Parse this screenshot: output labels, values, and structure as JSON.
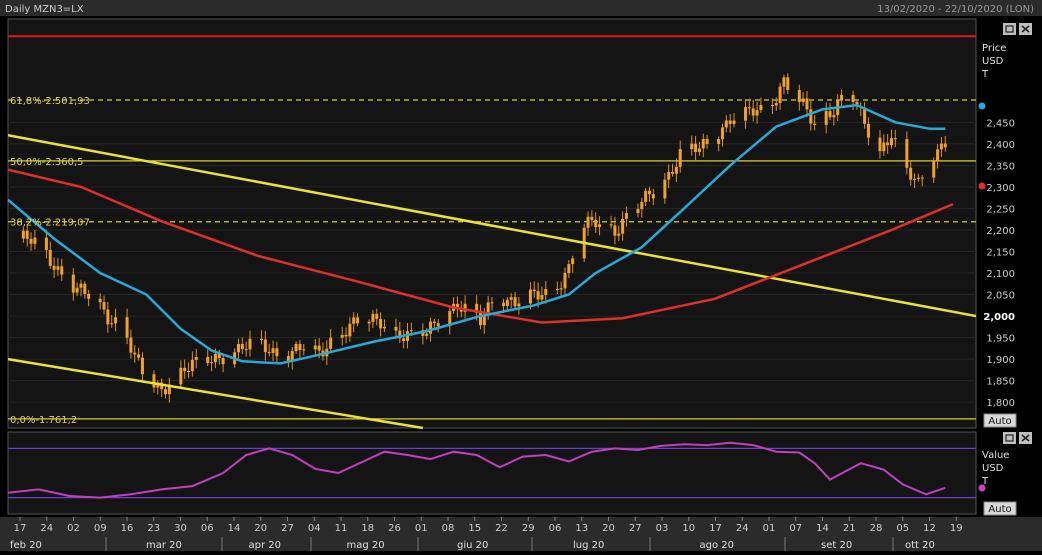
{
  "header": {
    "title": "Daily MZN3=LX",
    "range": "13/02/2020 - 22/10/2020 (LON)"
  },
  "price_panel": {
    "axis_title": [
      "Price",
      "USD",
      "T"
    ],
    "auto_label": "Auto",
    "fib_labels": [
      {
        "text": "61,8%-2.501,93",
        "value": 2501.93,
        "style": "dashed"
      },
      {
        "text": "50,0%-2.360,5",
        "value": 2360.5,
        "style": "solid"
      },
      {
        "text": "38,2%-2.219,07",
        "value": 2219.07,
        "style": "dashed"
      },
      {
        "text": "0,0%-1.761,2",
        "value": 1761.2,
        "style": "solid"
      }
    ],
    "red_level": 2650
  },
  "indicator_panel": {
    "axis_title": [
      "Value",
      "USD",
      "T"
    ],
    "auto_label": "Auto"
  },
  "x_axis": {
    "day_ticks": [
      "17",
      "24",
      "02",
      "09",
      "16",
      "23",
      "30",
      "06",
      "14",
      "20",
      "27",
      "04",
      "11",
      "18",
      "26",
      "01",
      "08",
      "15",
      "22",
      "29",
      "06",
      "13",
      "20",
      "27",
      "03",
      "10",
      "17",
      "24",
      "01",
      "07",
      "14",
      "21",
      "28",
      "05",
      "12",
      "19"
    ],
    "months": [
      "feb 20",
      "mar 20",
      "apr 20",
      "mag 20",
      "giu 20",
      "lug 20",
      "ago 20",
      "set 20",
      "ott 20"
    ]
  },
  "chart_data": {
    "type": "candlestick",
    "title": "Daily MZN3=LX",
    "date_range": [
      "2020-02-13",
      "2020-10-22"
    ],
    "ylabel": "Price USD",
    "ylim": [
      1740,
      2690
    ],
    "yticks": [
      2450,
      2400,
      2350,
      2300,
      2250,
      2200,
      2150,
      2100,
      2050,
      2000,
      1950,
      1900,
      1850,
      1800
    ],
    "yticks_bold": [
      2000
    ],
    "close_path": [
      [
        "2020-02-17",
        2180
      ],
      [
        "2020-02-21",
        2165
      ],
      [
        "2020-02-26",
        2110
      ],
      [
        "2020-03-02",
        2060
      ],
      [
        "2020-03-06",
        2040
      ],
      [
        "2020-03-10",
        2000
      ],
      [
        "2020-03-14",
        1980
      ],
      [
        "2020-03-17",
        1900
      ],
      [
        "2020-03-20",
        1850
      ],
      [
        "2020-03-24",
        1830
      ],
      [
        "2020-03-27",
        1860
      ],
      [
        "2020-03-31",
        1880
      ],
      [
        "2020-04-06",
        1900
      ],
      [
        "2020-04-12",
        1920
      ],
      [
        "2020-04-18",
        1935
      ],
      [
        "2020-04-24",
        1910
      ],
      [
        "2020-04-30",
        1925
      ],
      [
        "2020-05-04",
        1910
      ],
      [
        "2020-05-08",
        1955
      ],
      [
        "2020-05-14",
        1985
      ],
      [
        "2020-05-20",
        1990
      ],
      [
        "2020-05-24",
        1960
      ],
      [
        "2020-05-28",
        1950
      ],
      [
        "2020-06-01",
        1960
      ],
      [
        "2020-06-05",
        2010
      ],
      [
        "2020-06-09",
        2025
      ],
      [
        "2020-06-15",
        1985
      ],
      [
        "2020-06-19",
        2055
      ],
      [
        "2020-06-24",
        2030
      ],
      [
        "2020-06-29",
        2045
      ],
      [
        "2020-07-04",
        2060
      ],
      [
        "2020-07-08",
        2110
      ],
      [
        "2020-07-11",
        2200
      ],
      [
        "2020-07-15",
        2220
      ],
      [
        "2020-07-20",
        2200
      ],
      [
        "2020-07-25",
        2245
      ],
      [
        "2020-07-29",
        2280
      ],
      [
        "2020-08-03",
        2330
      ],
      [
        "2020-08-07",
        2390
      ],
      [
        "2020-08-11",
        2385
      ],
      [
        "2020-08-15",
        2420
      ],
      [
        "2020-08-19",
        2460
      ],
      [
        "2020-08-24",
        2470
      ],
      [
        "2020-08-29",
        2480
      ],
      [
        "2020-09-02",
        2550
      ],
      [
        "2020-09-06",
        2500
      ],
      [
        "2020-09-10",
        2440
      ],
      [
        "2020-09-14",
        2475
      ],
      [
        "2020-09-19",
        2530
      ],
      [
        "2020-09-23",
        2440
      ],
      [
        "2020-09-27",
        2380
      ],
      [
        "2020-09-30",
        2430
      ],
      [
        "2020-10-03",
        2350
      ],
      [
        "2020-10-07",
        2300
      ],
      [
        "2020-10-10",
        2360
      ],
      [
        "2020-10-14",
        2410
      ]
    ],
    "sma_fast": {
      "color": "#2aa8d8",
      "points": [
        [
          "2020-02-13",
          2270
        ],
        [
          "2020-02-25",
          2180
        ],
        [
          "2020-03-08",
          2100
        ],
        [
          "2020-03-20",
          2050
        ],
        [
          "2020-03-29",
          1970
        ],
        [
          "2020-04-06",
          1920
        ],
        [
          "2020-04-14",
          1895
        ],
        [
          "2020-04-24",
          1890
        ],
        [
          "2020-05-04",
          1910
        ],
        [
          "2020-05-18",
          1940
        ],
        [
          "2020-06-01",
          1965
        ],
        [
          "2020-06-15",
          2000
        ],
        [
          "2020-06-29",
          2025
        ],
        [
          "2020-07-08",
          2050
        ],
        [
          "2020-07-15",
          2100
        ],
        [
          "2020-07-27",
          2160
        ],
        [
          "2020-08-07",
          2250
        ],
        [
          "2020-08-19",
          2350
        ],
        [
          "2020-08-31",
          2440
        ],
        [
          "2020-09-12",
          2480
        ],
        [
          "2020-09-21",
          2490
        ],
        [
          "2020-10-01",
          2450
        ],
        [
          "2020-10-10",
          2435
        ],
        [
          "2020-10-14",
          2435
        ]
      ]
    },
    "sma_slow": {
      "color": "#e0302a",
      "points": [
        [
          "2020-02-13",
          2340
        ],
        [
          "2020-03-03",
          2300
        ],
        [
          "2020-03-24",
          2220
        ],
        [
          "2020-04-18",
          2140
        ],
        [
          "2020-05-14",
          2080
        ],
        [
          "2020-06-08",
          2020
        ],
        [
          "2020-07-01",
          1985
        ],
        [
          "2020-07-22",
          1995
        ],
        [
          "2020-08-15",
          2040
        ],
        [
          "2020-09-07",
          2120
        ],
        [
          "2020-09-30",
          2200
        ],
        [
          "2020-10-16",
          2260
        ]
      ]
    },
    "trendlines": [
      {
        "points": [
          [
            "2020-02-13",
            2420
          ],
          [
            "2020-10-22",
            2000
          ]
        ]
      },
      {
        "points": [
          [
            "2020-02-13",
            1900
          ],
          [
            "2020-05-31",
            1740
          ]
        ]
      }
    ],
    "horizontal_levels": [
      2650,
      2501.93,
      2360.5,
      2219.07,
      1761.2
    ],
    "indicator": {
      "type": "oscillator",
      "color": "#c040c0",
      "upper_band": 80,
      "lower_band": 20,
      "points": [
        [
          "2020-02-13",
          26
        ],
        [
          "2020-02-21",
          30
        ],
        [
          "2020-02-29",
          22
        ],
        [
          "2020-03-08",
          20
        ],
        [
          "2020-03-16",
          24
        ],
        [
          "2020-03-24",
          30
        ],
        [
          "2020-04-01",
          34
        ],
        [
          "2020-04-09",
          50
        ],
        [
          "2020-04-15",
          72
        ],
        [
          "2020-04-21",
          80
        ],
        [
          "2020-04-27",
          72
        ],
        [
          "2020-05-03",
          55
        ],
        [
          "2020-05-09",
          50
        ],
        [
          "2020-05-15",
          63
        ],
        [
          "2020-05-21",
          76
        ],
        [
          "2020-05-27",
          72
        ],
        [
          "2020-06-02",
          67
        ],
        [
          "2020-06-08",
          76
        ],
        [
          "2020-06-14",
          72
        ],
        [
          "2020-06-20",
          57
        ],
        [
          "2020-06-26",
          70
        ],
        [
          "2020-07-02",
          72
        ],
        [
          "2020-07-08",
          64
        ],
        [
          "2020-07-14",
          76
        ],
        [
          "2020-07-20",
          80
        ],
        [
          "2020-07-26",
          78
        ],
        [
          "2020-08-01",
          83
        ],
        [
          "2020-08-07",
          85
        ],
        [
          "2020-08-13",
          84
        ],
        [
          "2020-08-19",
          87
        ],
        [
          "2020-08-25",
          84
        ],
        [
          "2020-08-31",
          76
        ],
        [
          "2020-09-06",
          75
        ],
        [
          "2020-09-10",
          62
        ],
        [
          "2020-09-14",
          42
        ],
        [
          "2020-09-18",
          52
        ],
        [
          "2020-09-22",
          62
        ],
        [
          "2020-09-28",
          54
        ],
        [
          "2020-10-03",
          36
        ],
        [
          "2020-10-09",
          24
        ],
        [
          "2020-10-14",
          32
        ]
      ]
    }
  }
}
